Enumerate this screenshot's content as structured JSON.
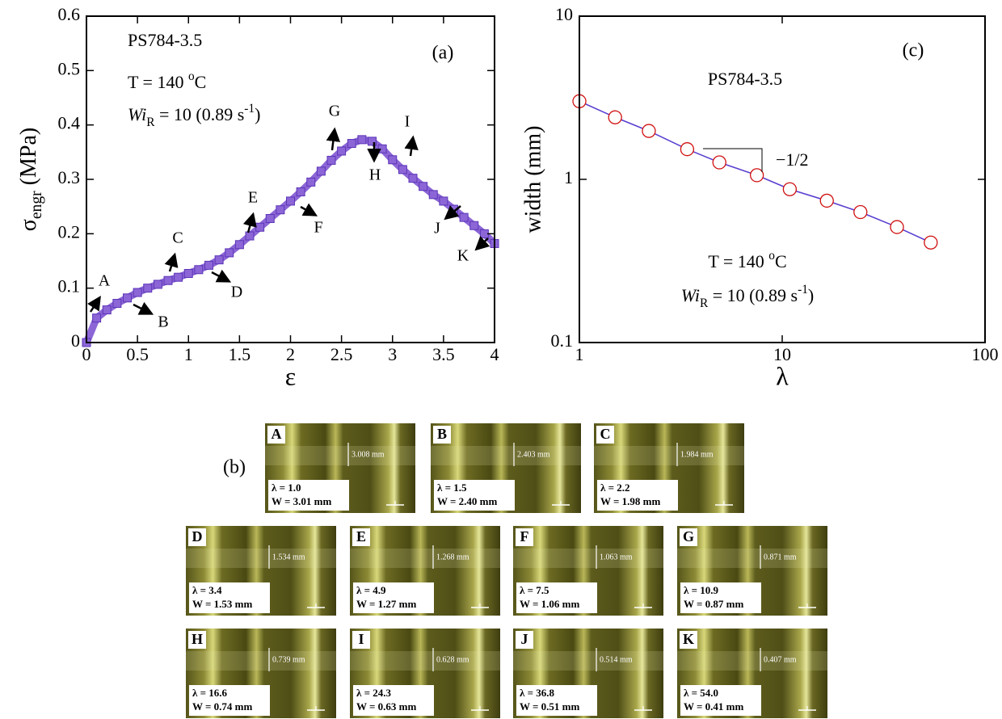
{
  "chart_data": [
    {
      "type": "line",
      "marker": "square",
      "color": "#8c66d6",
      "edge": "#5b34b8",
      "xlabel": "ε",
      "ylabel": "σ",
      "ylabel_sub": "engr",
      "ylabel_unit": " (MPa)",
      "x": [
        0,
        0.1,
        0.2,
        0.3,
        0.4,
        0.5,
        0.6,
        0.7,
        0.8,
        0.9,
        1.0,
        1.1,
        1.2,
        1.3,
        1.4,
        1.5,
        1.6,
        1.7,
        1.8,
        1.9,
        2.0,
        2.1,
        2.2,
        2.3,
        2.4,
        2.5,
        2.6,
        2.7,
        2.8,
        2.9,
        3.0,
        3.1,
        3.2,
        3.3,
        3.4,
        3.5,
        3.6,
        3.7,
        3.8,
        3.9,
        4.0
      ],
      "values": [
        0,
        0.045,
        0.06,
        0.072,
        0.082,
        0.092,
        0.1,
        0.107,
        0.114,
        0.12,
        0.127,
        0.134,
        0.142,
        0.152,
        0.165,
        0.18,
        0.196,
        0.212,
        0.228,
        0.244,
        0.26,
        0.277,
        0.295,
        0.315,
        0.335,
        0.352,
        0.366,
        0.373,
        0.37,
        0.356,
        0.336,
        0.318,
        0.302,
        0.287,
        0.272,
        0.26,
        0.245,
        0.23,
        0.215,
        0.2,
        0.182
      ],
      "xlim": [
        0,
        4
      ],
      "ylim": [
        0,
        0.6
      ],
      "xticks": [
        0,
        0.5,
        1,
        1.5,
        2,
        2.5,
        3,
        3.5,
        4
      ],
      "yticks": [
        0,
        0.1,
        0.2,
        0.3,
        0.4,
        0.5,
        0.6
      ],
      "sample": "PS784-3.5",
      "panel": "(a)",
      "temp": "T = 140 ",
      "temp_sup": "o",
      "temp_unit": "C",
      "wi": "Wi",
      "wi_sub": "R",
      "rate": " = 10 (0.89 s",
      "rate_sup": "-1",
      "rate_end": ")",
      "annotations": [
        "A",
        "B",
        "C",
        "D",
        "E",
        "F",
        "G",
        "H",
        "I",
        "J",
        "K"
      ]
    },
    {
      "type": "line",
      "marker": "circle",
      "color": "#5a3fd0",
      "edge": "#d01010",
      "xlog": true,
      "ylog": true,
      "xlabel": "λ",
      "ylabel": "width (mm)",
      "x": [
        1.0,
        1.5,
        2.2,
        3.4,
        4.9,
        7.5,
        10.9,
        16.6,
        24.3,
        36.8,
        54.0
      ],
      "values": [
        3.01,
        2.4,
        1.98,
        1.53,
        1.27,
        1.06,
        0.87,
        0.74,
        0.63,
        0.51,
        0.41
      ],
      "xlim": [
        1,
        100
      ],
      "ylim": [
        0.1,
        10
      ],
      "xticks": [
        1,
        10,
        100
      ],
      "yticks": [
        0.1,
        1,
        10
      ],
      "sample": "PS784-3.5",
      "panel": "(c)",
      "slope": "−1/2",
      "temp": "T = 140 ",
      "temp_sup": "o",
      "temp_unit": "C",
      "wi": "Wi",
      "wi_sub": "R",
      "rate": " = 10 (0.89 s",
      "rate_sup": "-1",
      "rate_end": ")"
    }
  ],
  "photos_label": "(b)",
  "photos": [
    {
      "letter": "A",
      "measure": "3.008 mm",
      "lambda": "λ = 1.0",
      "width": "W = 3.01 mm"
    },
    {
      "letter": "B",
      "measure": "2.403 mm",
      "lambda": "λ = 1.5",
      "width": "W = 2.40 mm"
    },
    {
      "letter": "C",
      "measure": "1.984 mm",
      "lambda": "λ = 2.2",
      "width": "W = 1.98 mm"
    },
    {
      "letter": "D",
      "measure": "1.534 mm",
      "lambda": "λ = 3.4",
      "width": "W = 1.53 mm"
    },
    {
      "letter": "E",
      "measure": "1.268 mm",
      "lambda": "λ = 4.9",
      "width": "W = 1.27 mm"
    },
    {
      "letter": "F",
      "measure": "1.063 mm",
      "lambda": "λ = 7.5",
      "width": "W = 1.06 mm"
    },
    {
      "letter": "G",
      "measure": "0.871 mm",
      "lambda": "λ = 10.9",
      "width": "W = 0.87 mm"
    },
    {
      "letter": "H",
      "measure": "0.739 mm",
      "lambda": "λ = 16.6",
      "width": "W = 0.74 mm"
    },
    {
      "letter": "I",
      "measure": "0.628 mm",
      "lambda": "λ = 24.3",
      "width": "W = 0.63 mm"
    },
    {
      "letter": "J",
      "measure": "0.514 mm",
      "lambda": "λ = 36.8",
      "width": "W = 0.51 mm"
    },
    {
      "letter": "K",
      "measure": "0.407 mm",
      "lambda": "λ = 54.0",
      "width": "W = 0.41 mm"
    }
  ]
}
